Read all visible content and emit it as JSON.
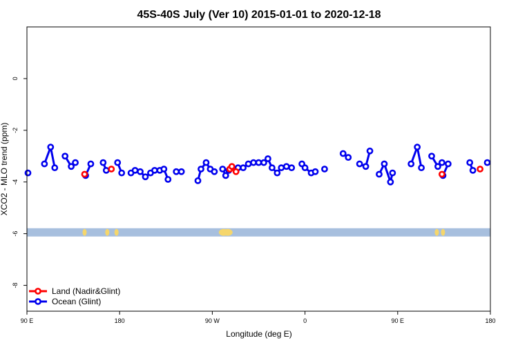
{
  "chart_data": {
    "type": "line",
    "title": "45S-40S July (Ver 10)   2015-01-01 to 2020-12-18",
    "xlabel": "Longitude (deg E)",
    "ylabel": "XCO2 - MLO trend (ppm)",
    "xlim": [
      90,
      540
    ],
    "ylim": [
      -9,
      2
    ],
    "x_ticks": [
      {
        "value": 90,
        "label": "90 E"
      },
      {
        "value": 180,
        "label": "180"
      },
      {
        "value": 270,
        "label": "90 W"
      },
      {
        "value": 360,
        "label": "0"
      },
      {
        "value": 450,
        "label": "90 E"
      },
      {
        "value": 540,
        "label": "180"
      }
    ],
    "y_ticks": [
      {
        "value": 0,
        "label": "0"
      },
      {
        "value": -2,
        "label": "-2"
      },
      {
        "value": -4,
        "label": "-4"
      },
      {
        "value": -6,
        "label": "-6"
      },
      {
        "value": -8,
        "label": "-8"
      }
    ],
    "grid": false,
    "legend_position": "bottom-left",
    "map_strip": {
      "y_center": -5.95,
      "ocean_color": "#a7bfde",
      "land_color": "#f5d66c",
      "land_longitudes": [
        146,
        168,
        177,
        281,
        285,
        488,
        494
      ]
    },
    "series": [
      {
        "name": "Land (Nadir&Glint)",
        "color": "#ff0000",
        "segments": [
          [
            [
              146,
              -3.7
            ]
          ],
          [
            [
              172,
              -3.5
            ]
          ],
          [
            [
              287,
              -3.5
            ],
            [
              289,
              -3.4
            ],
            [
              293,
              -3.6
            ]
          ],
          [
            [
              493,
              -3.7
            ]
          ],
          [
            [
              530,
              -3.5
            ]
          ]
        ]
      },
      {
        "name": "Ocean (Glint)",
        "color": "#0000ee",
        "segments": [
          [
            [
              91,
              -3.65
            ]
          ],
          [
            [
              107,
              -3.3
            ],
            [
              113,
              -2.65
            ],
            [
              117,
              -3.45
            ]
          ],
          [
            [
              127,
              -3.0
            ],
            [
              133,
              -3.4
            ],
            [
              137,
              -3.25
            ]
          ],
          [
            [
              147,
              -3.75
            ],
            [
              152,
              -3.3
            ]
          ],
          [
            [
              164,
              -3.25
            ],
            [
              167,
              -3.55
            ]
          ],
          [
            [
              178,
              -3.25
            ],
            [
              182,
              -3.65
            ]
          ],
          [
            [
              191,
              -3.65
            ],
            [
              195,
              -3.55
            ],
            [
              200,
              -3.6
            ],
            [
              205,
              -3.8
            ],
            [
              210,
              -3.65
            ],
            [
              214,
              -3.55
            ],
            [
              219,
              -3.55
            ],
            [
              223,
              -3.5
            ],
            [
              227,
              -3.9
            ]
          ],
          [
            [
              235,
              -3.6
            ],
            [
              240,
              -3.6
            ]
          ],
          [
            [
              256,
              -3.95
            ],
            [
              259,
              -3.5
            ],
            [
              264,
              -3.25
            ],
            [
              268,
              -3.5
            ],
            [
              272,
              -3.6
            ]
          ],
          [
            [
              280,
              -3.5
            ],
            [
              283,
              -3.75
            ],
            [
              286,
              -3.55
            ]
          ],
          [
            [
              295,
              -3.45
            ],
            [
              300,
              -3.45
            ],
            [
              305,
              -3.3
            ],
            [
              310,
              -3.25
            ],
            [
              315,
              -3.25
            ],
            [
              320,
              -3.25
            ],
            [
              324,
              -3.1
            ],
            [
              328,
              -3.45
            ],
            [
              333,
              -3.65
            ],
            [
              337,
              -3.45
            ],
            [
              342,
              -3.4
            ],
            [
              347,
              -3.45
            ]
          ],
          [
            [
              357,
              -3.3
            ],
            [
              360,
              -3.45
            ],
            [
              366,
              -3.65
            ],
            [
              370,
              -3.6
            ]
          ],
          [
            [
              379,
              -3.5
            ]
          ],
          [
            [
              397,
              -2.9
            ],
            [
              402,
              -3.05
            ]
          ],
          [
            [
              413,
              -3.3
            ],
            [
              419,
              -3.4
            ],
            [
              423,
              -2.8
            ]
          ],
          [
            [
              432,
              -3.7
            ],
            [
              437,
              -3.3
            ],
            [
              443,
              -4.0
            ],
            [
              445,
              -3.65
            ]
          ],
          [
            [
              463,
              -3.3
            ],
            [
              469,
              -2.65
            ],
            [
              473,
              -3.45
            ]
          ],
          [
            [
              483,
              -3.0
            ],
            [
              489,
              -3.4
            ],
            [
              493,
              -3.25
            ]
          ],
          [
            [
              494,
              -3.75
            ],
            [
              499,
              -3.3
            ]
          ],
          [
            [
              520,
              -3.25
            ],
            [
              523,
              -3.55
            ]
          ],
          [
            [
              537,
              -3.25
            ]
          ]
        ]
      }
    ]
  }
}
